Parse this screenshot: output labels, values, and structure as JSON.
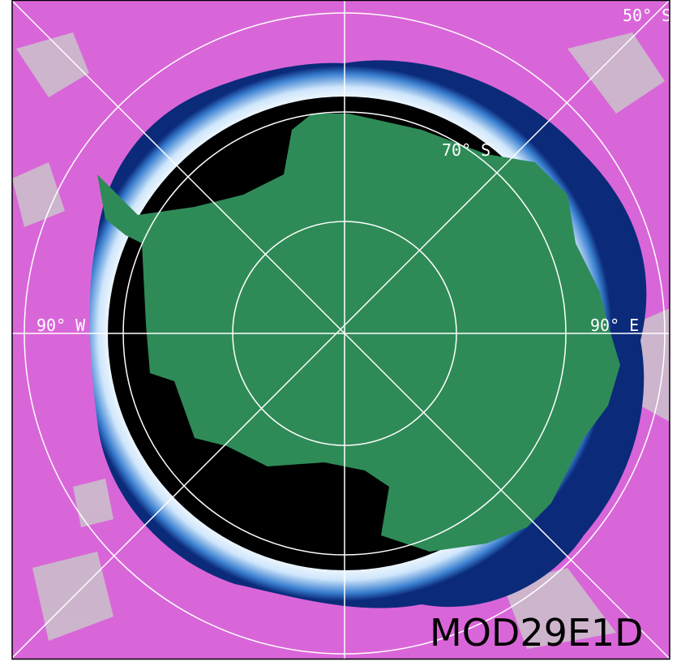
{
  "grid_labels": [
    "50° S",
    "70° S",
    "90° W",
    "90° E"
  ],
  "product": "MOD29E1D"
}
